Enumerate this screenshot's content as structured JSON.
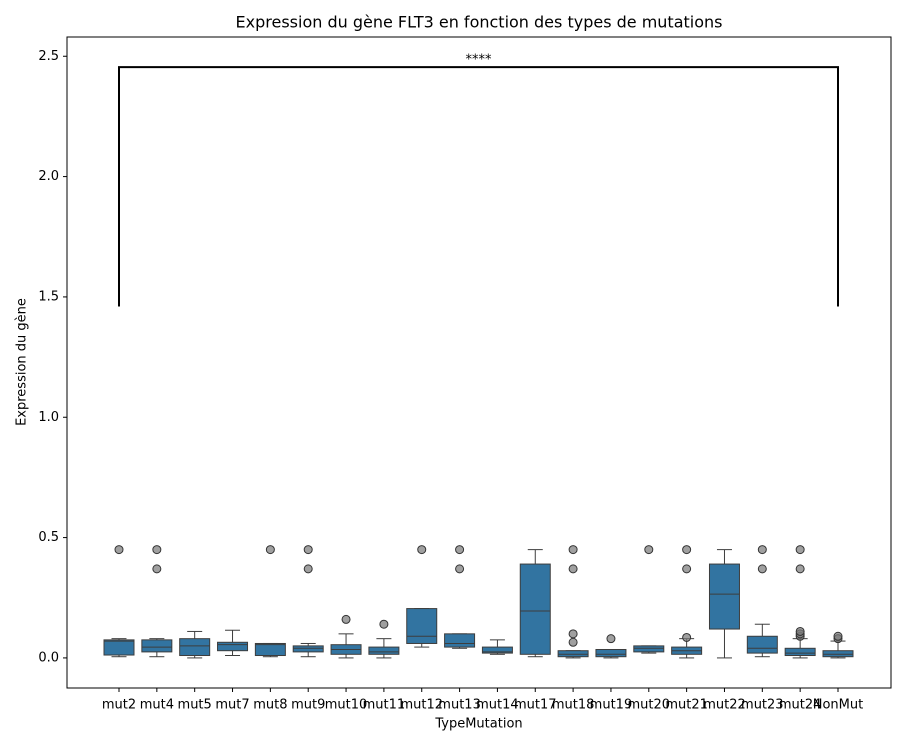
{
  "chart_data": {
    "type": "box",
    "title": "Expression du gène FLT3 en fonction des types de mutations",
    "x_label": "TypeMutation",
    "y_label": "Expression du gène",
    "color": "#3274a1",
    "edge_color": "#3d3d3d",
    "ylim": [
      -0.125,
      2.58
    ],
    "yticks": [
      {
        "value": 0,
        "label": "0.0"
      },
      0.5,
      {
        "value": 1,
        "label": "1.0"
      },
      1.5,
      {
        "value": 2,
        "label": "2.0"
      },
      2.5
    ],
    "categories": [
      "mut2",
      "mut4",
      "mut5",
      "mut7",
      "mut8",
      "mut9",
      "mut10",
      "mut11",
      "mut12",
      "mut13",
      "mut14",
      "mut17",
      "mut18",
      "mut19",
      "mut20",
      "mut21",
      "mut22",
      "mut23",
      "mut24",
      "NonMut"
    ],
    "boxes": [
      {
        "whislo": 0.005,
        "q1": 0.012,
        "med": 0.07,
        "q3": 0.075,
        "whishi": 0.08,
        "fliers": [
          0.45
        ]
      },
      {
        "whislo": 0.005,
        "q1": 0.025,
        "med": 0.045,
        "q3": 0.075,
        "whishi": 0.08,
        "fliers": [
          0.45,
          0.37
        ]
      },
      {
        "whislo": 0.0,
        "q1": 0.01,
        "med": 0.05,
        "q3": 0.08,
        "whishi": 0.11,
        "fliers": []
      },
      {
        "whislo": 0.01,
        "q1": 0.03,
        "med": 0.055,
        "q3": 0.065,
        "whishi": 0.115,
        "fliers": []
      },
      {
        "whislo": 0.005,
        "q1": 0.01,
        "med": 0.055,
        "q3": 0.06,
        "whishi": 0.06,
        "fliers": [
          0.45
        ]
      },
      {
        "whislo": 0.005,
        "q1": 0.025,
        "med": 0.04,
        "q3": 0.05,
        "whishi": 0.06,
        "fliers": [
          0.45,
          0.37
        ]
      },
      {
        "whislo": 0.0,
        "q1": 0.015,
        "med": 0.035,
        "q3": 0.055,
        "whishi": 0.1,
        "fliers": [
          0.16
        ]
      },
      {
        "whislo": 0.0,
        "q1": 0.015,
        "med": 0.025,
        "q3": 0.045,
        "whishi": 0.08,
        "fliers": [
          0.14
        ]
      },
      {
        "whislo": 0.045,
        "q1": 0.06,
        "med": 0.09,
        "q3": 0.205,
        "whishi": 0.205,
        "fliers": [
          0.45
        ]
      },
      {
        "whislo": 0.04,
        "q1": 0.045,
        "med": 0.06,
        "q3": 0.1,
        "whishi": 0.1,
        "fliers": [
          0.45,
          0.37
        ]
      },
      {
        "whislo": 0.015,
        "q1": 0.02,
        "med": 0.025,
        "q3": 0.045,
        "whishi": 0.075,
        "fliers": []
      },
      {
        "whislo": 0.005,
        "q1": 0.015,
        "med": 0.195,
        "q3": 0.39,
        "whishi": 0.45,
        "fliers": []
      },
      {
        "whislo": 0.0,
        "q1": 0.005,
        "med": 0.015,
        "q3": 0.03,
        "whishi": 0.03,
        "fliers": [
          0.45,
          0.37,
          0.1,
          0.065
        ]
      },
      {
        "whislo": 0.0,
        "q1": 0.005,
        "med": 0.015,
        "q3": 0.035,
        "whishi": 0.035,
        "fliers": [
          0.08
        ]
      },
      {
        "whislo": 0.02,
        "q1": 0.025,
        "med": 0.04,
        "q3": 0.05,
        "whishi": 0.05,
        "fliers": [
          0.45
        ]
      },
      {
        "whislo": 0.0,
        "q1": 0.015,
        "med": 0.03,
        "q3": 0.045,
        "whishi": 0.08,
        "fliers": [
          0.45,
          0.37,
          0.085
        ]
      },
      {
        "whislo": 0.0,
        "q1": 0.12,
        "med": 0.265,
        "q3": 0.39,
        "whishi": 0.45,
        "fliers": []
      },
      {
        "whislo": 0.005,
        "q1": 0.02,
        "med": 0.04,
        "q3": 0.09,
        "whishi": 0.14,
        "fliers": [
          0.45,
          0.37
        ]
      },
      {
        "whislo": 0.0,
        "q1": 0.01,
        "med": 0.02,
        "q3": 0.04,
        "whishi": 0.08,
        "fliers": [
          0.45,
          0.37,
          0.09,
          0.1,
          0.11
        ]
      },
      {
        "whislo": 0.0,
        "q1": 0.005,
        "med": 0.015,
        "q3": 0.03,
        "whishi": 0.07,
        "fliers": [
          0.08,
          0.09
        ]
      }
    ],
    "bracket": {
      "label": "****",
      "top": 2.455,
      "base": 1.46
    }
  }
}
